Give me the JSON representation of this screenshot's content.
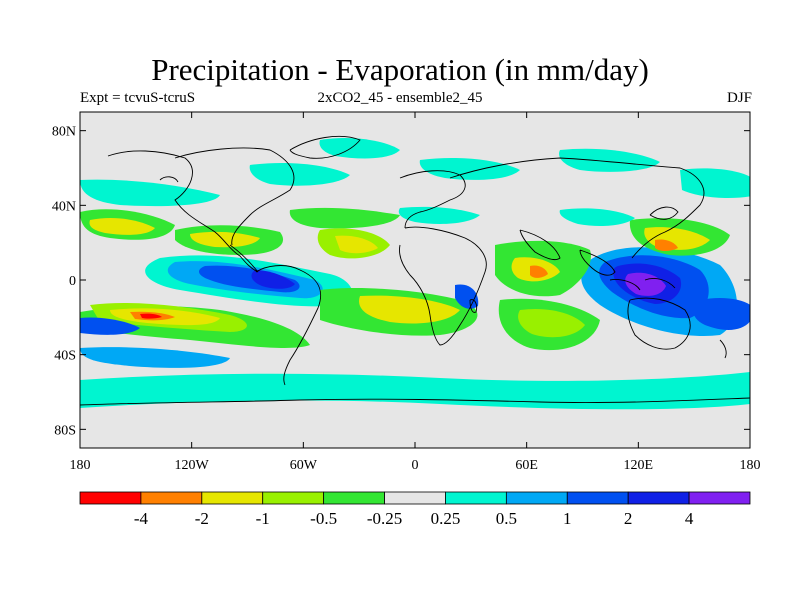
{
  "title": "Precipitation - Evaporation (in mm/day)",
  "subtitle_left": "Expt = tcvuS-tcruS",
  "subtitle_center": "2xCO2_45 - ensemble2_45",
  "subtitle_right": "DJF",
  "map": {
    "projection": "cylindrical-equidistant",
    "lon_range": [
      -180,
      180
    ],
    "lat_range": [
      -90,
      90
    ],
    "background_color": "#e6e6e6",
    "coastline_color": "#000000",
    "x_ticks": [
      {
        "lon": -180,
        "label": "180"
      },
      {
        "lon": -120,
        "label": "120W"
      },
      {
        "lon": -60,
        "label": "60W"
      },
      {
        "lon": 0,
        "label": "0"
      },
      {
        "lon": 60,
        "label": "60E"
      },
      {
        "lon": 120,
        "label": "120E"
      },
      {
        "lon": 180,
        "label": "180"
      }
    ],
    "y_ticks": [
      {
        "lat": 80,
        "label": "80N"
      },
      {
        "lat": 40,
        "label": "40N"
      },
      {
        "lat": 0,
        "label": "0"
      },
      {
        "lat": -40,
        "label": "40S"
      },
      {
        "lat": -80,
        "label": "80S"
      }
    ]
  },
  "colorbar": {
    "colors": [
      "#ff0000",
      "#ff8000",
      "#e6e600",
      "#99f000",
      "#33e633",
      "#e6e6e6",
      "#00f5d0",
      "#00a8f5",
      "#0050f0",
      "#1020e6",
      "#8020f0"
    ],
    "labels": [
      "-4",
      "-2",
      "-1",
      "-0.5",
      "-0.25",
      "0.25",
      "0.5",
      "1",
      "2",
      "4"
    ]
  }
}
